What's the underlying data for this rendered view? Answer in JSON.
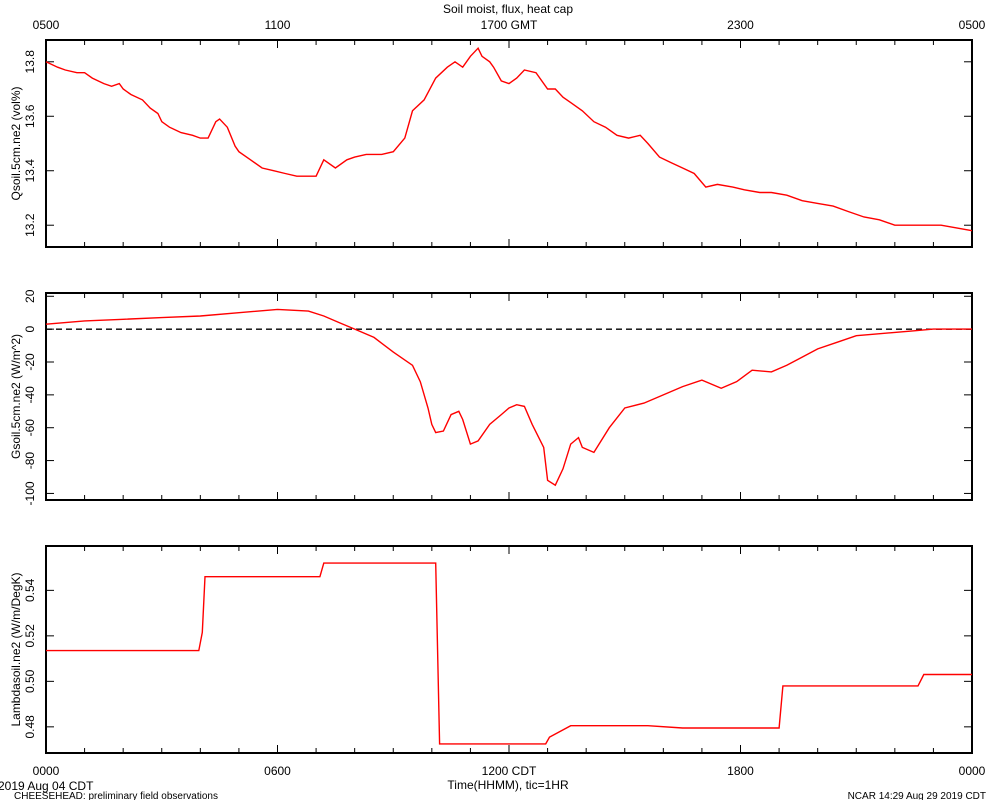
{
  "figure": {
    "title": "Soil moist, flux, heat cap",
    "top_axis_ticks": [
      "0500",
      "1100",
      "1700 GMT",
      "2300",
      "0500"
    ],
    "bottom_axis_ticks": [
      "0000",
      "0600",
      "1200 CDT",
      "1800",
      "0000"
    ],
    "xlabel": "Time(HHMM), tic=1HR",
    "date_label": "2019 Aug 04 CDT",
    "footer_left": "CHEESEHEAD: preliminary field observations",
    "footer_right": "NCAR 14:29 Aug 29 2019 CDT",
    "series_color": "#ff0000"
  },
  "chart_data": [
    {
      "type": "line",
      "ylabel": "Qsoil.5cm.ne2 (vol%)",
      "ylim": [
        13.12,
        13.88
      ],
      "yticks": [
        "13.2",
        "13.4",
        "13.6",
        "13.8"
      ],
      "zero_line": false,
      "x_hours": [
        0.0,
        0.3,
        0.5,
        0.8,
        1.0,
        1.2,
        1.5,
        1.7,
        1.9,
        2.0,
        2.2,
        2.5,
        2.7,
        2.9,
        3.0,
        3.2,
        3.5,
        3.8,
        4.0,
        4.2,
        4.4,
        4.5,
        4.7,
        4.9,
        5.0,
        5.3,
        5.6,
        5.9,
        6.2,
        6.5,
        6.8,
        7.0,
        7.2,
        7.5,
        7.8,
        8.0,
        8.3,
        8.7,
        9.0,
        9.3,
        9.5,
        9.8,
        10.1,
        10.4,
        10.6,
        10.8,
        11.0,
        11.2,
        11.3,
        11.5,
        11.6,
        11.8,
        12.0,
        12.2,
        12.4,
        12.7,
        13.0,
        13.2,
        13.4,
        13.6,
        13.9,
        14.2,
        14.5,
        14.8,
        15.1,
        15.4,
        15.6,
        15.9,
        16.2,
        16.5,
        16.8,
        17.1,
        17.4,
        17.8,
        18.1,
        18.5,
        18.8,
        19.2,
        19.6,
        20.0,
        20.4,
        20.8,
        21.2,
        21.6,
        22.0,
        22.4,
        22.8,
        23.2,
        23.6,
        24.0
      ],
      "y": [
        13.8,
        13.78,
        13.77,
        13.76,
        13.76,
        13.74,
        13.72,
        13.71,
        13.72,
        13.7,
        13.68,
        13.66,
        13.63,
        13.61,
        13.58,
        13.56,
        13.54,
        13.53,
        13.52,
        13.52,
        13.58,
        13.59,
        13.56,
        13.49,
        13.47,
        13.44,
        13.41,
        13.4,
        13.39,
        13.38,
        13.38,
        13.38,
        13.44,
        13.41,
        13.44,
        13.45,
        13.46,
        13.46,
        13.47,
        13.52,
        13.62,
        13.66,
        13.74,
        13.78,
        13.8,
        13.78,
        13.82,
        13.85,
        13.82,
        13.8,
        13.78,
        13.73,
        13.72,
        13.74,
        13.77,
        13.76,
        13.7,
        13.7,
        13.67,
        13.65,
        13.62,
        13.58,
        13.56,
        13.53,
        13.52,
        13.53,
        13.5,
        13.45,
        13.43,
        13.41,
        13.39,
        13.34,
        13.35,
        13.34,
        13.33,
        13.32,
        13.32,
        13.31,
        13.29,
        13.28,
        13.27,
        13.25,
        13.23,
        13.22,
        13.2,
        13.2,
        13.2,
        13.2,
        13.19,
        13.18
      ]
    },
    {
      "type": "line",
      "ylabel": "Gsoil.5cm.ne2 (W/m^2)",
      "ylim": [
        -104,
        22
      ],
      "yticks": [
        "-100",
        "-80",
        "-60",
        "-40",
        "-20",
        "0",
        "20"
      ],
      "zero_line": true,
      "x_hours": [
        0.0,
        1.0,
        2.0,
        3.0,
        4.0,
        5.0,
        6.0,
        6.8,
        7.2,
        7.6,
        8.0,
        8.5,
        9.0,
        9.5,
        9.7,
        9.9,
        10.0,
        10.1,
        10.3,
        10.5,
        10.7,
        10.8,
        11.0,
        11.2,
        11.5,
        11.8,
        12.0,
        12.2,
        12.4,
        12.6,
        12.9,
        13.0,
        13.2,
        13.4,
        13.6,
        13.8,
        13.9,
        14.2,
        14.6,
        15.0,
        15.5,
        16.0,
        16.5,
        17.0,
        17.5,
        17.9,
        18.3,
        18.8,
        19.2,
        19.6,
        20.0,
        20.5,
        21.0,
        21.5,
        22.0,
        22.5,
        23.0,
        23.5,
        24.0
      ],
      "y": [
        3,
        5,
        6,
        7,
        8,
        10,
        12,
        11,
        8,
        4,
        0,
        -5,
        -14,
        -22,
        -32,
        -48,
        -58,
        -63,
        -62,
        -52,
        -50,
        -55,
        -70,
        -68,
        -58,
        -52,
        -48,
        -46,
        -47,
        -58,
        -72,
        -92,
        -95,
        -85,
        -70,
        -66,
        -72,
        -75,
        -60,
        -48,
        -45,
        -40,
        -35,
        -31,
        -36,
        -32,
        -25,
        -26,
        -22,
        -17,
        -12,
        -8,
        -4,
        -3,
        -2,
        -1,
        0,
        0,
        0
      ]
    },
    {
      "type": "line",
      "ylabel": "Lambdasoil.ne2 (W/m/DegK)",
      "ylim": [
        0.4685,
        0.5595
      ],
      "yticks": [
        "0.48",
        "0.50",
        "0.52",
        "0.54"
      ],
      "zero_line": false,
      "x_hours": [
        0.0,
        3.96,
        4.05,
        4.12,
        7.1,
        7.2,
        10.1,
        10.2,
        12.95,
        13.05,
        13.6,
        15.6,
        16.5,
        19.0,
        19.1,
        22.6,
        22.75,
        24.0
      ],
      "y": [
        0.5135,
        0.5135,
        0.5215,
        0.546,
        0.546,
        0.552,
        0.552,
        0.4725,
        0.4725,
        0.4755,
        0.4805,
        0.4805,
        0.4795,
        0.4795,
        0.498,
        0.498,
        0.503,
        0.503
      ]
    }
  ]
}
